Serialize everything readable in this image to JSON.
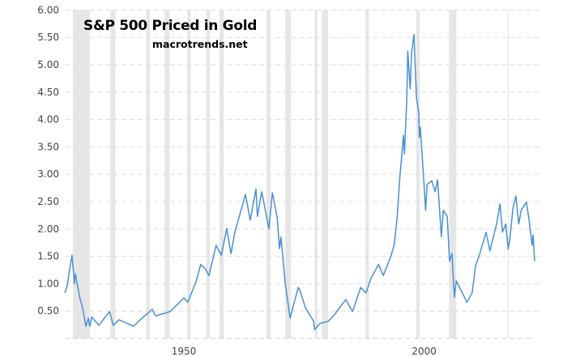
{
  "chart_data": {
    "type": "line",
    "title": "S&P 500 Priced in Gold",
    "subtitle": "macrotrends.net",
    "xlabel": "",
    "ylabel": "",
    "xlim": [
      1927.9,
      2025.7
    ],
    "ylim": [
      0,
      6
    ],
    "yticks": [
      "0.50",
      "1.00",
      "1.50",
      "2.00",
      "2.50",
      "3.00",
      "3.50",
      "4.00",
      "4.50",
      "5.00",
      "5.50",
      "6.00"
    ],
    "xticks": [
      "1950",
      "2000"
    ],
    "grid": "horizontal-dashed",
    "colors": {
      "line": "#4a8fd4",
      "recession": "#e6e6e6",
      "grid": "#dddddd",
      "tick_text": "#444444"
    },
    "recessions": [
      [
        1929.6,
        1933.1
      ],
      [
        1937.4,
        1938.4
      ],
      [
        1944.9,
        1945.6
      ],
      [
        1948.7,
        1949.7
      ],
      [
        1953.4,
        1954.1
      ],
      [
        1957.4,
        1958.1
      ],
      [
        1960.1,
        1961.0
      ],
      [
        1969.9,
        1970.7
      ],
      [
        1973.8,
        1975.0
      ],
      [
        1979.9,
        1980.5
      ],
      [
        1981.4,
        1982.7
      ],
      [
        1990.5,
        1991.2
      ],
      [
        2001.1,
        2001.8
      ],
      [
        2007.9,
        2009.4
      ],
      [
        2020.1,
        2020.3
      ]
    ],
    "series": [
      {
        "points": [
          [
            1927.9,
            0.83
          ],
          [
            1928.4,
            0.96
          ],
          [
            1928.9,
            1.26
          ],
          [
            1929.4,
            1.52
          ],
          [
            1929.9,
            1.0
          ],
          [
            1930.1,
            1.18
          ],
          [
            1931.0,
            0.75
          ],
          [
            1931.6,
            0.56
          ],
          [
            1932.3,
            0.22
          ],
          [
            1932.8,
            0.37
          ],
          [
            1933.1,
            0.22
          ],
          [
            1933.5,
            0.39
          ],
          [
            1935.0,
            0.24
          ],
          [
            1937.2,
            0.49
          ],
          [
            1938.0,
            0.24
          ],
          [
            1939.2,
            0.34
          ],
          [
            1942.2,
            0.22
          ],
          [
            1943.6,
            0.34
          ],
          [
            1946.1,
            0.53
          ],
          [
            1946.8,
            0.41
          ],
          [
            1949.8,
            0.49
          ],
          [
            1952.7,
            0.74
          ],
          [
            1953.5,
            0.66
          ],
          [
            1955.2,
            1.03
          ],
          [
            1956.2,
            1.35
          ],
          [
            1957.1,
            1.28
          ],
          [
            1957.9,
            1.15
          ],
          [
            1959.4,
            1.7
          ],
          [
            1960.5,
            1.52
          ],
          [
            1961.6,
            2.01
          ],
          [
            1962.5,
            1.55
          ],
          [
            1963.3,
            1.94
          ],
          [
            1965.5,
            2.63
          ],
          [
            1966.5,
            2.16
          ],
          [
            1967.7,
            2.73
          ],
          [
            1968.0,
            2.23
          ],
          [
            1968.9,
            2.68
          ],
          [
            1970.4,
            2.0
          ],
          [
            1971.1,
            2.66
          ],
          [
            1972.1,
            2.22
          ],
          [
            1972.6,
            1.64
          ],
          [
            1972.9,
            1.85
          ],
          [
            1973.8,
            1.0
          ],
          [
            1974.8,
            0.37
          ],
          [
            1976.5,
            0.93
          ],
          [
            1976.8,
            0.89
          ],
          [
            1978.0,
            0.56
          ],
          [
            1979.7,
            0.31
          ],
          [
            1979.9,
            0.16
          ],
          [
            1981.0,
            0.27
          ],
          [
            1982.7,
            0.31
          ],
          [
            1984.1,
            0.44
          ],
          [
            1986.4,
            0.71
          ],
          [
            1987.8,
            0.49
          ],
          [
            1989.5,
            0.93
          ],
          [
            1990.6,
            0.83
          ],
          [
            1991.7,
            1.11
          ],
          [
            1993.2,
            1.35
          ],
          [
            1994.2,
            1.15
          ],
          [
            1995.7,
            1.48
          ],
          [
            1996.5,
            1.72
          ],
          [
            1997.1,
            2.23
          ],
          [
            1997.6,
            2.9
          ],
          [
            1998.4,
            3.71
          ],
          [
            1998.6,
            3.37
          ],
          [
            1999.1,
            4.36
          ],
          [
            1999.3,
            5.25
          ],
          [
            1999.8,
            4.56
          ],
          [
            2000.1,
            5.22
          ],
          [
            2000.6,
            5.55
          ],
          [
            2000.9,
            4.9
          ],
          [
            2001.1,
            4.41
          ],
          [
            2001.6,
            4.11
          ],
          [
            2001.7,
            3.67
          ],
          [
            2001.9,
            3.86
          ],
          [
            2002.6,
            2.93
          ],
          [
            2003.0,
            2.34
          ],
          [
            2003.3,
            2.81
          ],
          [
            2004.3,
            2.88
          ],
          [
            2005.0,
            2.68
          ],
          [
            2005.5,
            2.9
          ],
          [
            2006.3,
            1.86
          ],
          [
            2006.7,
            2.34
          ],
          [
            2007.5,
            2.23
          ],
          [
            2008.0,
            1.41
          ],
          [
            2008.5,
            1.55
          ],
          [
            2009.0,
            0.75
          ],
          [
            2009.4,
            1.05
          ],
          [
            2010.5,
            0.86
          ],
          [
            2011.6,
            0.66
          ],
          [
            2012.7,
            0.83
          ],
          [
            2013.4,
            1.33
          ],
          [
            2014.3,
            1.55
          ],
          [
            2015.6,
            1.94
          ],
          [
            2016.4,
            1.6
          ],
          [
            2017.8,
            2.09
          ],
          [
            2018.5,
            2.46
          ],
          [
            2019.0,
            1.94
          ],
          [
            2019.7,
            2.09
          ],
          [
            2020.2,
            1.63
          ],
          [
            2020.5,
            1.79
          ],
          [
            2021.2,
            2.38
          ],
          [
            2021.8,
            2.6
          ],
          [
            2022.4,
            2.09
          ],
          [
            2022.9,
            2.34
          ],
          [
            2024.0,
            2.49
          ],
          [
            2024.5,
            2.19
          ],
          [
            2025.2,
            1.7
          ],
          [
            2025.4,
            1.89
          ],
          [
            2025.7,
            1.41
          ]
        ]
      }
    ]
  }
}
